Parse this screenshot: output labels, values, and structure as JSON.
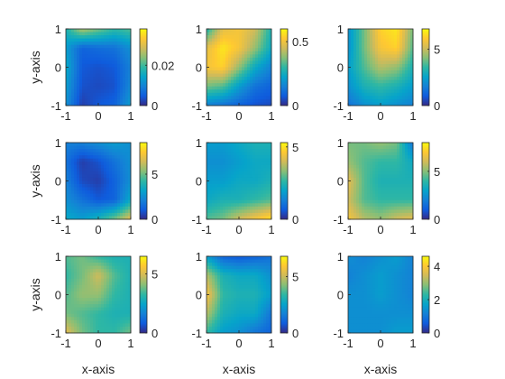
{
  "chart_data": {
    "type": "heatmap",
    "layout": {
      "rows": 3,
      "cols": 3
    },
    "colormap": "parula",
    "colormap_stops": [
      "#352a87",
      "#0f5cdd",
      "#1481d6",
      "#06a4ca",
      "#2eb7a4",
      "#87bf77",
      "#d1bb59",
      "#fec832",
      "#f9fb0e"
    ],
    "axis_labels": {
      "x": "x-axis",
      "y": "y-axis"
    },
    "xlim": [
      -1,
      1
    ],
    "ylim": [
      -1,
      1
    ],
    "xticks": [
      "-1",
      "0",
      "1"
    ],
    "yticks": [
      "1",
      "0",
      "-1"
    ],
    "panels": [
      {
        "clim": [
          0,
          0.038
        ],
        "cbar_ticks": [
          {
            "v": 0,
            "label": "0"
          },
          {
            "v": 0.02,
            "label": "0.02"
          }
        ],
        "grid": [
          [
            0.45,
            0.7,
            0.6,
            0.5,
            0.55
          ],
          [
            0.35,
            0.15,
            0.18,
            0.2,
            0.3
          ],
          [
            0.4,
            0.12,
            0.1,
            0.12,
            0.25
          ],
          [
            0.35,
            0.1,
            0.08,
            0.1,
            0.28
          ],
          [
            0.3,
            0.05,
            0.12,
            0.15,
            0.35
          ]
        ]
      },
      {
        "clim": [
          0,
          0.6
        ],
        "cbar_ticks": [
          {
            "v": 0,
            "label": "0"
          },
          {
            "v": 0.5,
            "label": "0.5"
          }
        ],
        "grid": [
          [
            0.45,
            0.8,
            0.85,
            0.75,
            0.45
          ],
          [
            0.8,
            0.95,
            0.85,
            0.65,
            0.4
          ],
          [
            0.85,
            0.9,
            0.65,
            0.4,
            0.25
          ],
          [
            0.6,
            0.55,
            0.35,
            0.2,
            0.15
          ],
          [
            0.25,
            0.2,
            0.15,
            0.1,
            0.08
          ]
        ]
      },
      {
        "clim": [
          0,
          6.8
        ],
        "cbar_ticks": [
          {
            "v": 0,
            "label": "0"
          },
          {
            "v": 5,
            "label": "5"
          }
        ],
        "grid": [
          [
            0.3,
            0.6,
            0.9,
            0.95,
            0.6
          ],
          [
            0.3,
            0.6,
            0.85,
            0.9,
            0.55
          ],
          [
            0.35,
            0.55,
            0.7,
            0.65,
            0.45
          ],
          [
            0.3,
            0.45,
            0.5,
            0.45,
            0.35
          ],
          [
            0.2,
            0.3,
            0.35,
            0.3,
            0.25
          ]
        ]
      },
      {
        "clim": [
          0,
          8.5
        ],
        "cbar_ticks": [
          {
            "v": 0,
            "label": "0"
          },
          {
            "v": 5,
            "label": "5"
          }
        ],
        "grid": [
          [
            0.25,
            0.25,
            0.3,
            0.35,
            0.3
          ],
          [
            0.2,
            0.05,
            0.1,
            0.2,
            0.3
          ],
          [
            0.25,
            0.08,
            0.05,
            0.15,
            0.3
          ],
          [
            0.3,
            0.2,
            0.12,
            0.15,
            0.4
          ],
          [
            0.4,
            0.35,
            0.45,
            0.6,
            0.8
          ]
        ]
      },
      {
        "clim": [
          0,
          5.3
        ],
        "cbar_ticks": [
          {
            "v": 0,
            "label": "0"
          },
          {
            "v": 5,
            "label": "5"
          }
        ],
        "grid": [
          [
            0.35,
            0.35,
            0.4,
            0.45,
            0.45
          ],
          [
            0.3,
            0.3,
            0.35,
            0.4,
            0.4
          ],
          [
            0.35,
            0.35,
            0.4,
            0.4,
            0.45
          ],
          [
            0.4,
            0.45,
            0.45,
            0.5,
            0.55
          ],
          [
            0.55,
            0.6,
            0.75,
            0.85,
            0.95
          ]
        ]
      },
      {
        "clim": [
          0,
          8.0
        ],
        "cbar_ticks": [
          {
            "v": 0,
            "label": "0"
          },
          {
            "v": 5,
            "label": "5"
          }
        ],
        "grid": [
          [
            0.6,
            0.6,
            0.65,
            0.6,
            0.2
          ],
          [
            0.65,
            0.55,
            0.5,
            0.5,
            0.4
          ],
          [
            0.8,
            0.55,
            0.45,
            0.45,
            0.45
          ],
          [
            0.75,
            0.55,
            0.5,
            0.5,
            0.5
          ],
          [
            0.85,
            0.7,
            0.65,
            0.75,
            0.8
          ]
        ]
      },
      {
        "clim": [
          0,
          6.5
        ],
        "cbar_ticks": [
          {
            "v": 0,
            "label": "0"
          },
          {
            "v": 5,
            "label": "5"
          }
        ],
        "grid": [
          [
            0.55,
            0.6,
            0.5,
            0.45,
            0.45
          ],
          [
            0.5,
            0.6,
            0.75,
            0.55,
            0.45
          ],
          [
            0.55,
            0.65,
            0.65,
            0.5,
            0.45
          ],
          [
            0.6,
            0.55,
            0.5,
            0.45,
            0.45
          ],
          [
            0.8,
            0.6,
            0.5,
            0.5,
            0.6
          ]
        ]
      },
      {
        "clim": [
          0,
          6.8
        ],
        "cbar_ticks": [
          {
            "v": 0,
            "label": "0"
          },
          {
            "v": 5,
            "label": "5"
          }
        ],
        "grid": [
          [
            0.35,
            0.15,
            0.12,
            0.15,
            0.2
          ],
          [
            0.7,
            0.45,
            0.4,
            0.4,
            0.3
          ],
          [
            0.85,
            0.5,
            0.45,
            0.45,
            0.35
          ],
          [
            0.7,
            0.45,
            0.4,
            0.4,
            0.2
          ],
          [
            0.5,
            0.35,
            0.3,
            0.2,
            0.15
          ]
        ]
      },
      {
        "clim": [
          0,
          4.6
        ],
        "cbar_ticks": [
          {
            "v": 0,
            "label": "0"
          },
          {
            "v": 2,
            "label": "2"
          },
          {
            "v": 4,
            "label": "4"
          }
        ],
        "grid": [
          [
            0.3,
            0.25,
            0.3,
            0.35,
            0.25
          ],
          [
            0.25,
            0.3,
            0.35,
            0.3,
            0.25
          ],
          [
            0.3,
            0.3,
            0.35,
            0.3,
            0.25
          ],
          [
            0.3,
            0.3,
            0.3,
            0.3,
            0.3
          ],
          [
            0.3,
            0.3,
            0.3,
            0.35,
            0.35
          ]
        ]
      }
    ]
  }
}
